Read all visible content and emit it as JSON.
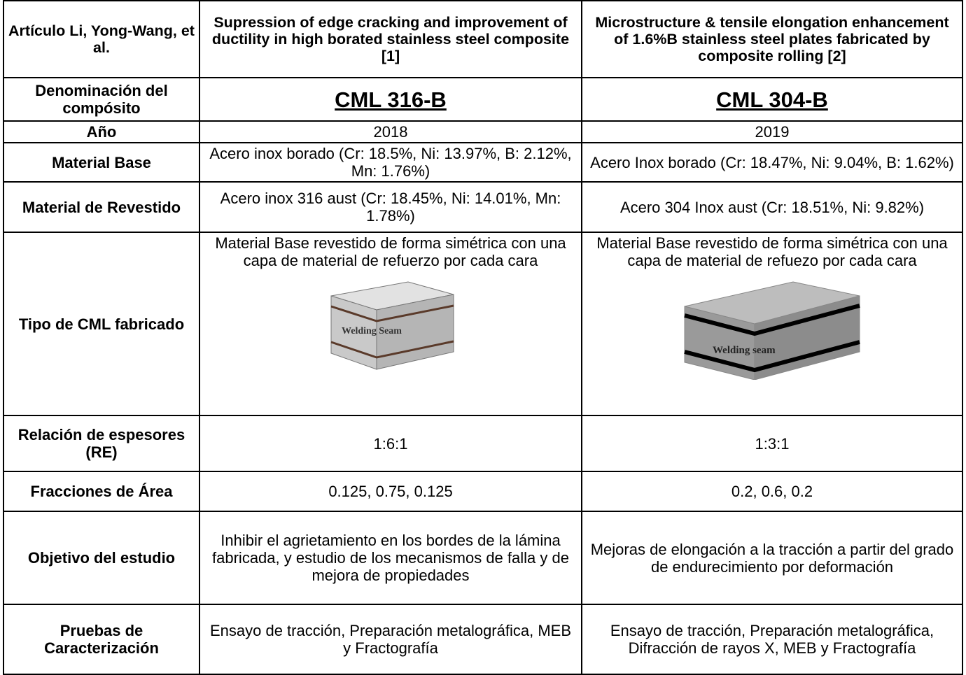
{
  "table": {
    "header": [
      "Artículo Li, Yong-Wang, et al.",
      "Supression of edge cracking and improvement of ductility in high borated stainless steel composite [1]",
      "Microstructure & tensile elongation enhancement of 1.6%B stainless steel plates fabricated by composite rolling [2]"
    ],
    "rows": [
      [
        "Denominación del compósito",
        "CML 316-B",
        "CML 304-B"
      ],
      [
        "Año",
        "2018",
        "2019"
      ],
      [
        "Material Base",
        "Acero inox borado (Cr: 18.5%, Ni: 13.97%, B: 2.12%, Mn: 1.76%)",
        "Acero Inox borado (Cr: 18.47%, Ni: 9.04%, B: 1.62%)"
      ],
      [
        "Material de Revestido",
        "Acero inox 316 aust (Cr: 18.45%, Ni: 14.01%, Mn: 1.78%)",
        "Acero 304 Inox aust (Cr: 18.51%, Ni: 9.82%)"
      ],
      [
        "Tipo de CML fabricado",
        "Material Base revestido de forma simétrica con una capa de material de refuerzo por cada cara",
        "Material Base revestido de forma simétrica con una capa de material de refuezo por cada cara"
      ],
      [
        "Relación de espesores (RE)",
        "1:6:1",
        "1:3:1"
      ],
      [
        "Fracciones de Área",
        "0.125, 0.75, 0.125",
        "0.2, 0.6, 0.2"
      ],
      [
        "Objetivo del estudio",
        "Inhibir el agrietamiento en los bordes de la lámina fabricada, y estudio de los mecanismos de falla y de mejora de propiedades",
        "Mejoras de elongación a la tracción a partir del grado de endurecimiento por deformación"
      ],
      [
        "Pruebas de Caracterización",
        "Ensayo de tracción, Preparación metalográfica, MEB y Fractografía",
        "Ensayo de tracción, Preparación metalográfica, Difracción de rayos X, MEB y Fractografía"
      ]
    ]
  },
  "figures": [
    "Welding Seam",
    "Welding seam"
  ]
}
